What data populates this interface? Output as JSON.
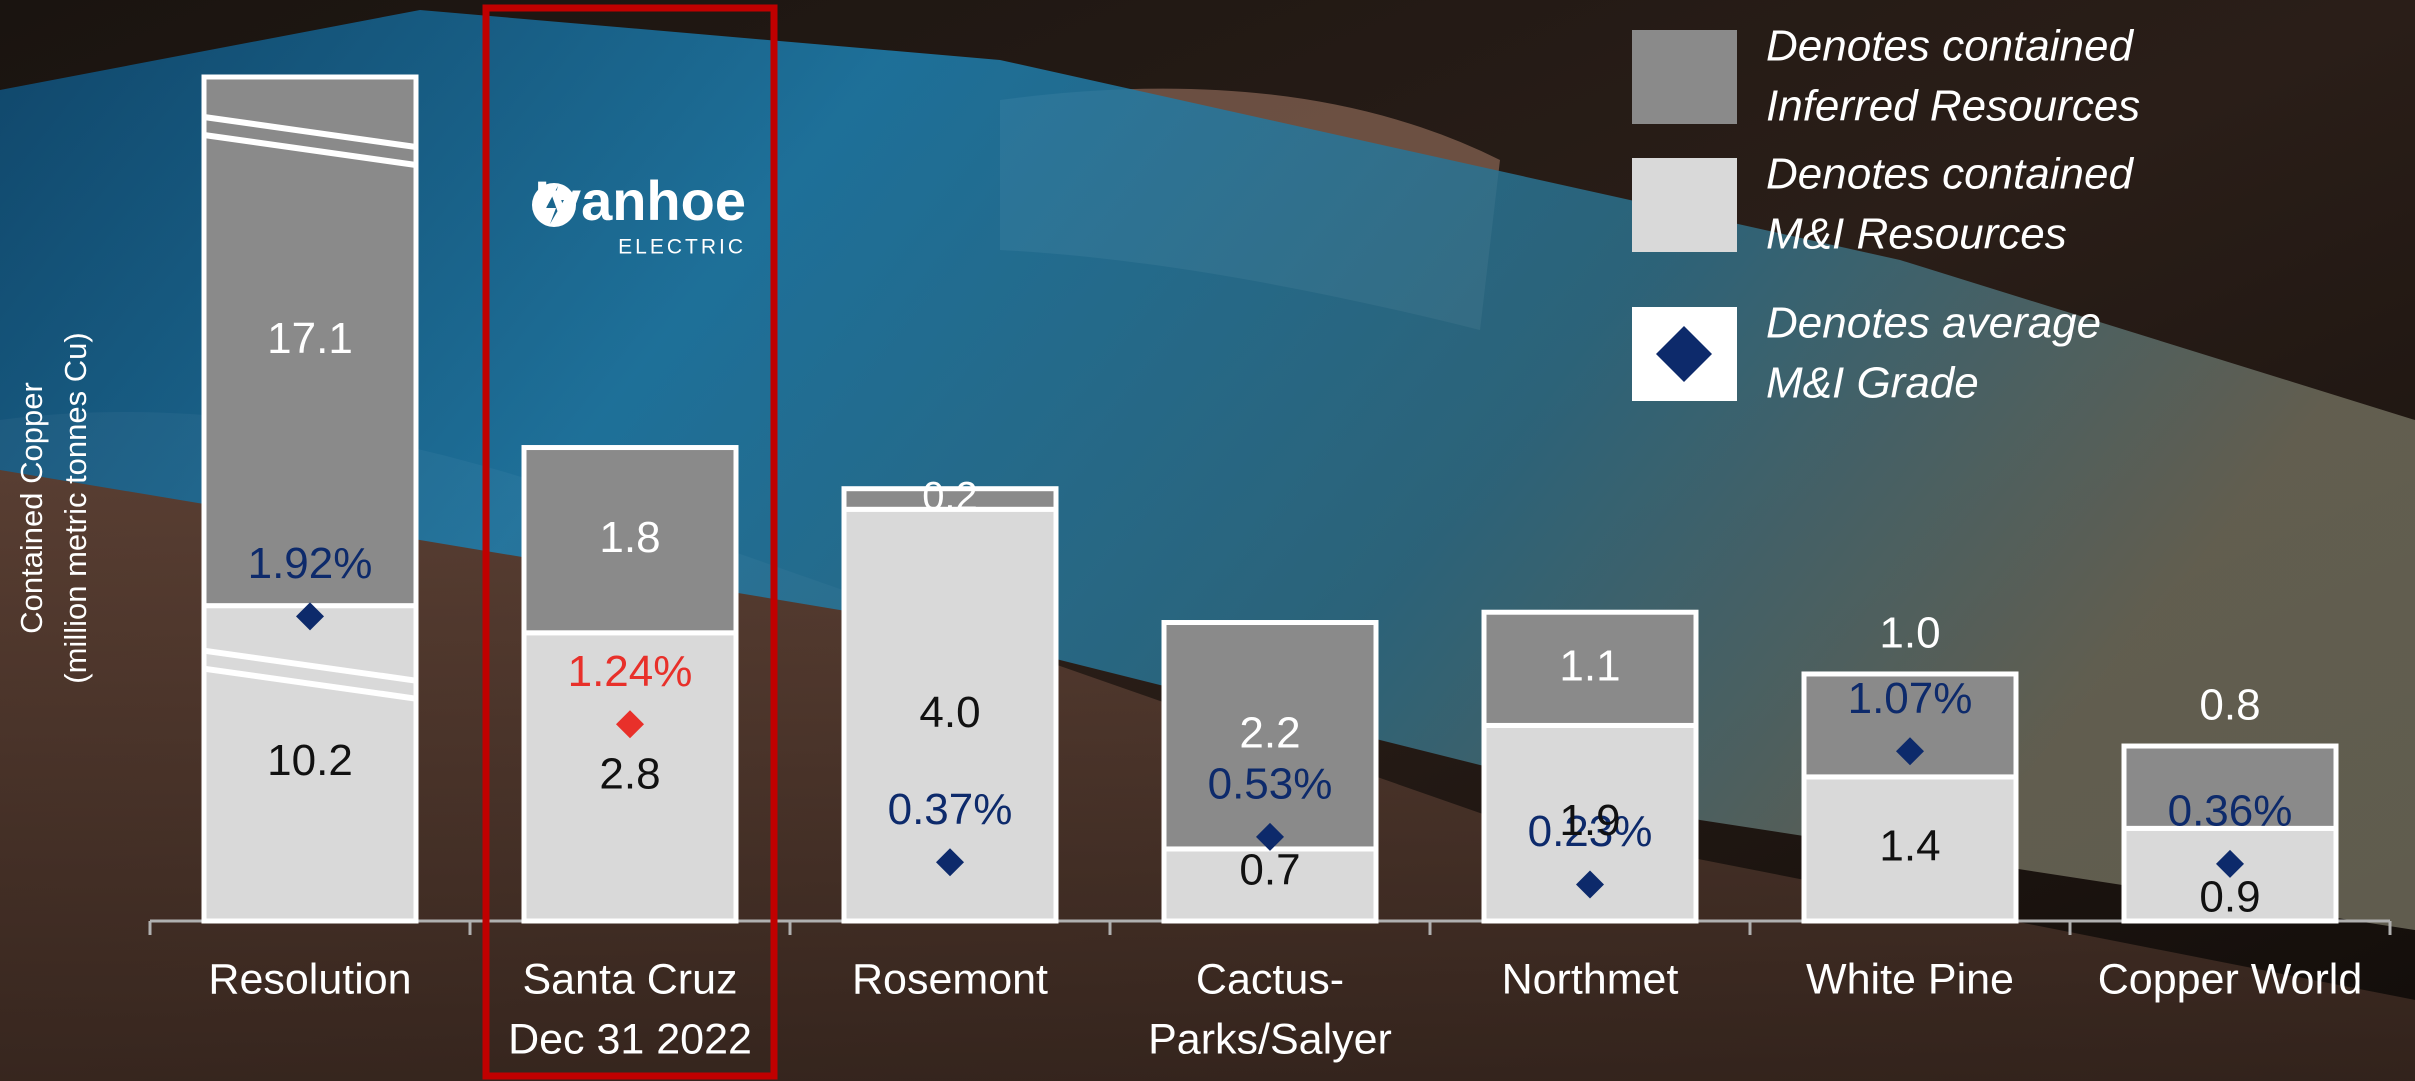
{
  "chart_data": {
    "type": "stacked-bar",
    "ylabel": [
      "Contained Copper",
      "(million metric tonnes Cu)"
    ],
    "categories": [
      [
        "Resolution"
      ],
      [
        "Santa Cruz",
        "Dec 31 2022"
      ],
      [
        "Rosemont"
      ],
      [
        "Cactus-",
        "Parks/Salyer"
      ],
      [
        "Northmet"
      ],
      [
        "White Pine"
      ],
      [
        "Copper World"
      ]
    ],
    "ylim": [
      0,
      8.2
    ],
    "y2lim": [
      0,
      5.32
    ],
    "series": [
      {
        "name": [
          "Denotes contained",
          "M&I Resources"
        ],
        "color": "#d9d9d9",
        "label_color": "#111111",
        "values": [
          10.2,
          2.8,
          4.0,
          0.7,
          1.9,
          1.4,
          0.9
        ],
        "value_labels": [
          "10.2",
          "2.8",
          "4.0",
          "0.7",
          "1.9",
          "1.4",
          "0.9"
        ]
      },
      {
        "name": [
          "Denotes contained",
          "Inferred Resources"
        ],
        "color": "#8a8a8a",
        "label_color": "#ffffff",
        "values": [
          17.1,
          1.8,
          0.2,
          2.2,
          1.1,
          1.0,
          0.8
        ],
        "value_labels": [
          "17.1",
          "1.8",
          "0.2",
          "2.2",
          "1.1",
          "1.0",
          "0.8"
        ]
      },
      {
        "name": [
          "Denotes average",
          "M&I Grade"
        ],
        "color": "#0d2a6b",
        "axis": "y2",
        "marker": "diamond",
        "values": [
          1.92,
          1.24,
          0.37,
          0.53,
          0.23,
          1.07,
          0.36
        ],
        "value_labels": [
          "1.92%",
          "1.24%",
          "0.37%",
          "0.53%",
          "0.23%",
          "1.07%",
          "0.36%"
        ]
      }
    ],
    "highlight": 1,
    "highlight_color": "#e8302a",
    "highlight_frame_color": "#c00000",
    "logo": {
      "name": "Ivanhoe",
      "sub": "ELECTRIC"
    }
  }
}
